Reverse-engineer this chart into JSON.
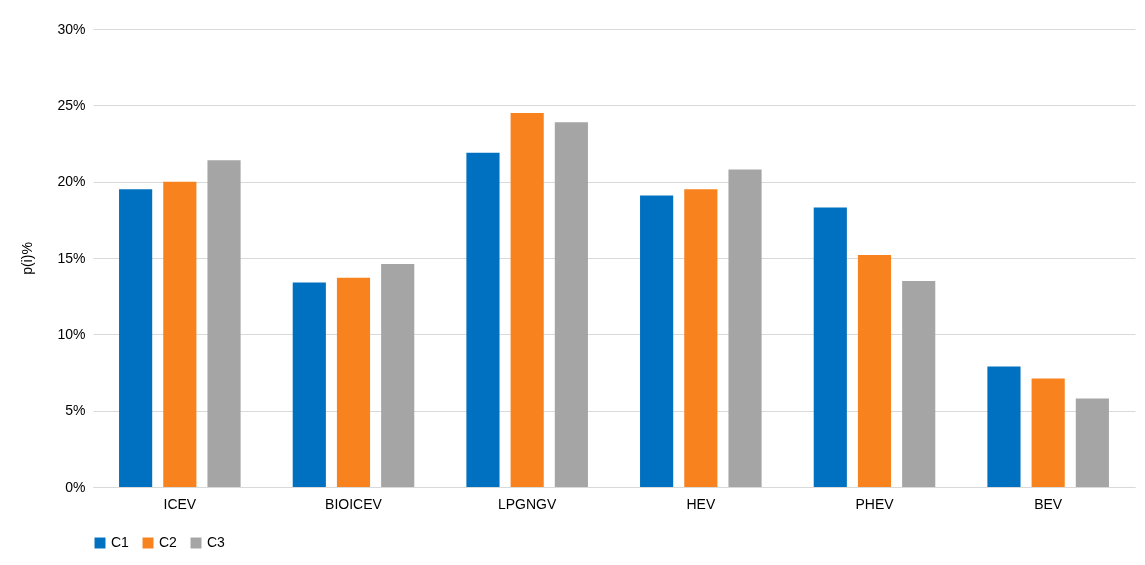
{
  "chart_data": {
    "type": "bar",
    "ylabel": "p(i)%",
    "categories": [
      "ICEV",
      "BIOICEV",
      "LPGNGV",
      "HEV",
      "PHEV",
      "BEV"
    ],
    "series": [
      {
        "name": "C1",
        "color": "#0070c0",
        "values": [
          19.5,
          13.4,
          21.9,
          19.1,
          18.3,
          7.9
        ]
      },
      {
        "name": "C2",
        "color": "#f7821e",
        "values": [
          20.0,
          13.7,
          24.5,
          19.5,
          15.2,
          7.1
        ]
      },
      {
        "name": "C3",
        "color": "#a5a5a5",
        "values": [
          21.4,
          14.6,
          23.9,
          20.8,
          13.5,
          5.8
        ]
      }
    ],
    "ylim": [
      0,
      30
    ],
    "yticks": [
      {
        "value": 0,
        "label": "0%"
      },
      {
        "value": 5,
        "label": "5%"
      },
      {
        "value": 10,
        "label": "10%"
      },
      {
        "value": 15,
        "label": "15%"
      },
      {
        "value": 20,
        "label": "20%"
      },
      {
        "value": 25,
        "label": "25%"
      },
      {
        "value": 30,
        "label": "30%"
      }
    ],
    "grid": "y",
    "legend": "bottom"
  }
}
